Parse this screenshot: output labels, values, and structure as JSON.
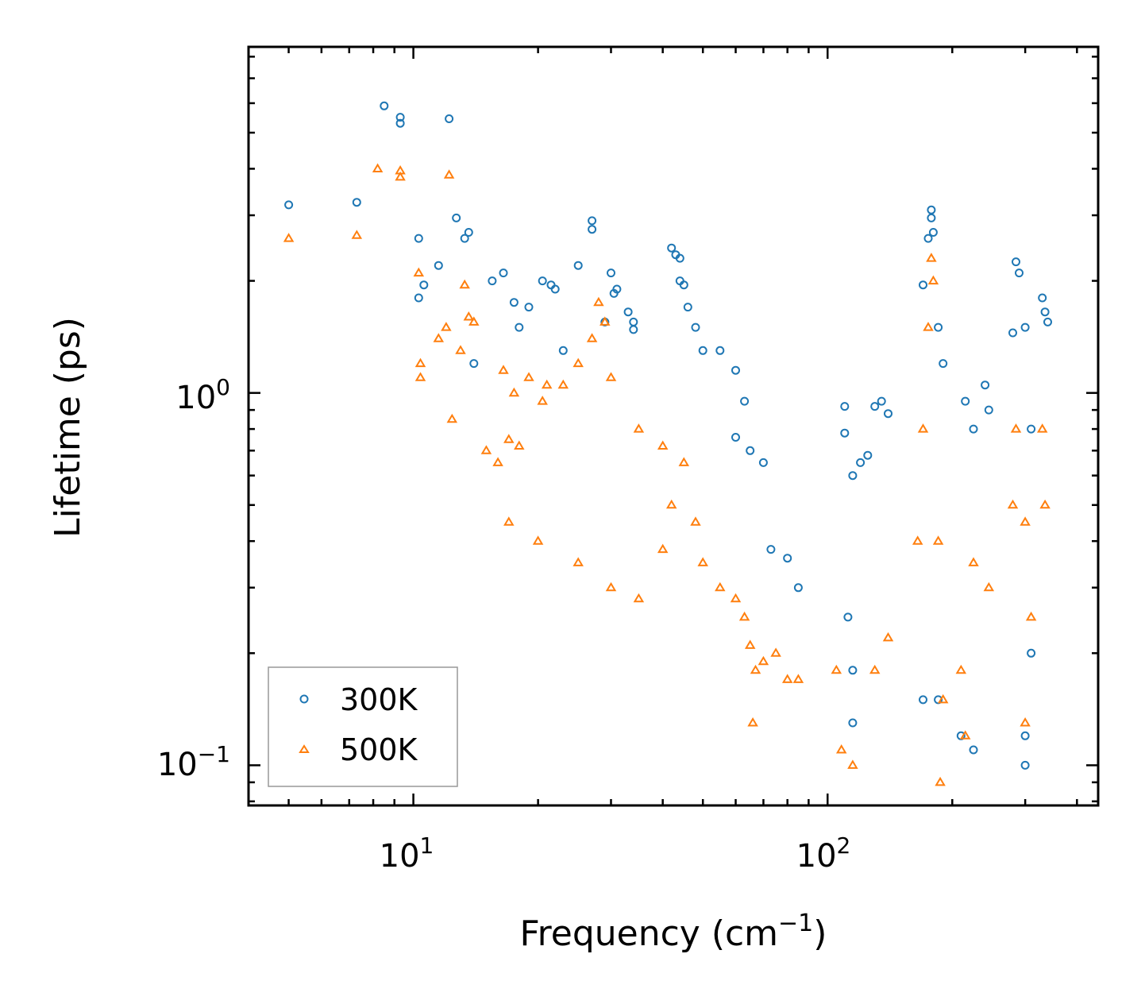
{
  "chart_data": {
    "type": "scatter",
    "title": "",
    "xlabel": "Frequency (cm",
    "xlabel_sup": "−1",
    "xlabel_suffix": ")",
    "ylabel": "Lifetime (ps)",
    "xscale": "log",
    "yscale": "log",
    "xlim": [
      4,
      450
    ],
    "ylim": [
      0.078,
      8.5
    ],
    "x_ticks": [
      {
        "value": 10,
        "base": "10",
        "exp": "1"
      },
      {
        "value": 100,
        "base": "10",
        "exp": "2"
      }
    ],
    "y_ticks": [
      {
        "value": 1,
        "base": "10",
        "exp": "0"
      },
      {
        "value": 0.1,
        "base": "10",
        "exp": "−1"
      }
    ],
    "legend_position": "bottom-left",
    "series": [
      {
        "name": "300K",
        "marker": "circle",
        "color": "#1f77b4",
        "points": [
          [
            5.0,
            3.2
          ],
          [
            7.3,
            3.25
          ],
          [
            8.5,
            5.9
          ],
          [
            9.3,
            5.3
          ],
          [
            9.3,
            5.5
          ],
          [
            10.3,
            2.6
          ],
          [
            12.2,
            5.45
          ],
          [
            11.5,
            2.2
          ],
          [
            12.7,
            2.95
          ],
          [
            13.3,
            2.6
          ],
          [
            13.6,
            2.7
          ],
          [
            10.3,
            1.8
          ],
          [
            10.6,
            1.95
          ],
          [
            14,
            1.2
          ],
          [
            15.5,
            2.0
          ],
          [
            16.5,
            2.1
          ],
          [
            17.5,
            1.75
          ],
          [
            18,
            1.5
          ],
          [
            19,
            1.7
          ],
          [
            20.5,
            2.0
          ],
          [
            21.5,
            1.95
          ],
          [
            22,
            1.9
          ],
          [
            23,
            1.3
          ],
          [
            25,
            2.2
          ],
          [
            27,
            2.9
          ],
          [
            27,
            2.75
          ],
          [
            29,
            1.55
          ],
          [
            30,
            2.1
          ],
          [
            30.5,
            1.85
          ],
          [
            31,
            1.9
          ],
          [
            33,
            1.65
          ],
          [
            34,
            1.48
          ],
          [
            34,
            1.55
          ],
          [
            42,
            2.45
          ],
          [
            43,
            2.35
          ],
          [
            44,
            2.3
          ],
          [
            44,
            2.0
          ],
          [
            45,
            1.95
          ],
          [
            46,
            1.7
          ],
          [
            48,
            1.5
          ],
          [
            50,
            1.3
          ],
          [
            55,
            1.3
          ],
          [
            60,
            1.15
          ],
          [
            63,
            0.95
          ],
          [
            60,
            0.76
          ],
          [
            65,
            0.7
          ],
          [
            70,
            0.65
          ],
          [
            73,
            0.38
          ],
          [
            80,
            0.36
          ],
          [
            85,
            0.3
          ],
          [
            110,
            0.92
          ],
          [
            110,
            0.78
          ],
          [
            115,
            0.6
          ],
          [
            120,
            0.65
          ],
          [
            125,
            0.68
          ],
          [
            130,
            0.92
          ],
          [
            135,
            0.95
          ],
          [
            140,
            0.88
          ],
          [
            170,
            1.95
          ],
          [
            175,
            2.6
          ],
          [
            178,
            3.1
          ],
          [
            178,
            2.95
          ],
          [
            180,
            2.7
          ],
          [
            185,
            1.5
          ],
          [
            190,
            1.2
          ],
          [
            215,
            0.95
          ],
          [
            225,
            0.8
          ],
          [
            240,
            1.05
          ],
          [
            245,
            0.9
          ],
          [
            280,
            1.45
          ],
          [
            285,
            2.25
          ],
          [
            290,
            2.1
          ],
          [
            300,
            1.5
          ],
          [
            310,
            0.8
          ],
          [
            330,
            1.8
          ],
          [
            335,
            1.65
          ],
          [
            340,
            1.55
          ],
          [
            170,
            0.15
          ],
          [
            185,
            0.15
          ],
          [
            210,
            0.12
          ],
          [
            225,
            0.11
          ],
          [
            300,
            0.1
          ],
          [
            115,
            0.13
          ],
          [
            112,
            0.25
          ],
          [
            300,
            0.12
          ],
          [
            310,
            0.2
          ],
          [
            115,
            0.18
          ]
        ]
      },
      {
        "name": "500K",
        "marker": "triangle",
        "color": "#ff7f0e",
        "points": [
          [
            5.0,
            2.6
          ],
          [
            7.3,
            2.65
          ],
          [
            8.2,
            4.0
          ],
          [
            9.3,
            3.8
          ],
          [
            9.3,
            3.95
          ],
          [
            12.2,
            3.85
          ],
          [
            10.3,
            2.1
          ],
          [
            13.3,
            1.95
          ],
          [
            13.6,
            1.6
          ],
          [
            14,
            1.55
          ],
          [
            12,
            1.5
          ],
          [
            11.5,
            1.4
          ],
          [
            13,
            1.3
          ],
          [
            10.4,
            1.2
          ],
          [
            10.4,
            1.1
          ],
          [
            12.4,
            0.85
          ],
          [
            15,
            0.7
          ],
          [
            16,
            0.65
          ],
          [
            17,
            0.75
          ],
          [
            18,
            0.72
          ],
          [
            16.5,
            1.15
          ],
          [
            17.5,
            1.0
          ],
          [
            19,
            1.1
          ],
          [
            20.5,
            0.95
          ],
          [
            21,
            1.05
          ],
          [
            23,
            1.05
          ],
          [
            25,
            1.2
          ],
          [
            27,
            1.4
          ],
          [
            28,
            1.75
          ],
          [
            29,
            1.55
          ],
          [
            30,
            1.1
          ],
          [
            35,
            0.8
          ],
          [
            40,
            0.72
          ],
          [
            17,
            0.45
          ],
          [
            20,
            0.4
          ],
          [
            25,
            0.35
          ],
          [
            30,
            0.3
          ],
          [
            35,
            0.28
          ],
          [
            40,
            0.38
          ],
          [
            42,
            0.5
          ],
          [
            45,
            0.65
          ],
          [
            48,
            0.45
          ],
          [
            50,
            0.35
          ],
          [
            55,
            0.3
          ],
          [
            60,
            0.28
          ],
          [
            63,
            0.25
          ],
          [
            65,
            0.21
          ],
          [
            67,
            0.18
          ],
          [
            66,
            0.13
          ],
          [
            70,
            0.19
          ],
          [
            75,
            0.2
          ],
          [
            80,
            0.17
          ],
          [
            85,
            0.17
          ],
          [
            105,
            0.18
          ],
          [
            108,
            0.11
          ],
          [
            115,
            0.1
          ],
          [
            130,
            0.18
          ],
          [
            140,
            0.22
          ],
          [
            165,
            0.4
          ],
          [
            170,
            0.8
          ],
          [
            175,
            1.5
          ],
          [
            178,
            2.3
          ],
          [
            180,
            2.0
          ],
          [
            185,
            0.4
          ],
          [
            190,
            0.15
          ],
          [
            187,
            0.09
          ],
          [
            210,
            0.18
          ],
          [
            225,
            0.35
          ],
          [
            245,
            0.3
          ],
          [
            280,
            0.5
          ],
          [
            285,
            0.8
          ],
          [
            300,
            0.45
          ],
          [
            310,
            0.25
          ],
          [
            330,
            0.8
          ],
          [
            335,
            0.5
          ],
          [
            300,
            0.13
          ],
          [
            215,
            0.12
          ]
        ]
      }
    ]
  }
}
